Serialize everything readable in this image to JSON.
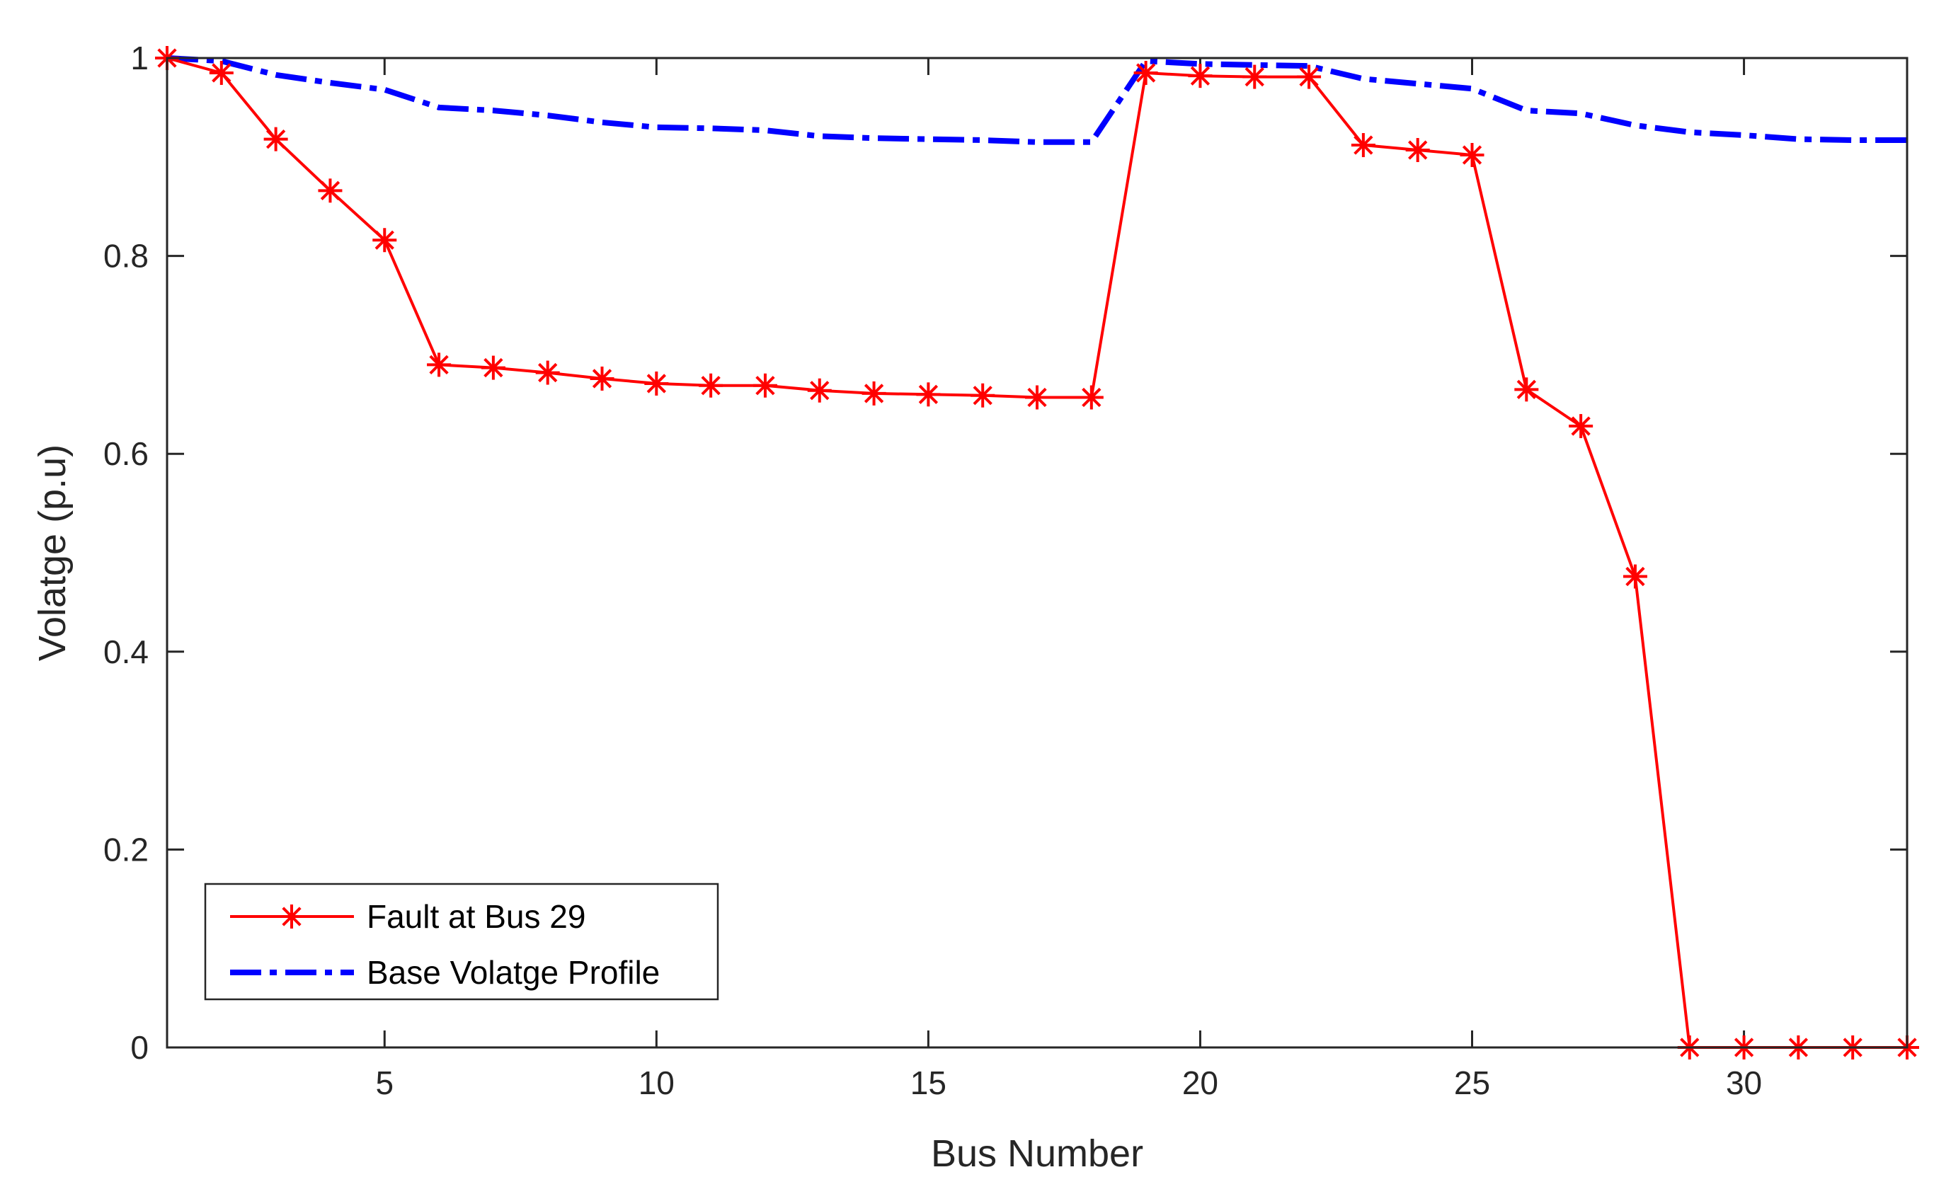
{
  "chart_data": {
    "type": "line",
    "title": "",
    "xlabel": "Bus Number",
    "ylabel": "Volatge (p.u)",
    "xlim": [
      1,
      33
    ],
    "ylim": [
      0,
      1
    ],
    "xticks": [
      5,
      10,
      15,
      20,
      25,
      30
    ],
    "yticks": [
      0,
      0.2,
      0.4,
      0.6,
      0.8,
      1
    ],
    "ytick_labels": [
      "0",
      "0.2",
      "0.4",
      "0.6",
      "0.8",
      "1"
    ],
    "grid": false,
    "box": true,
    "legend_position": "bottom-left",
    "x": [
      1,
      2,
      3,
      4,
      5,
      6,
      7,
      8,
      9,
      10,
      11,
      12,
      13,
      14,
      15,
      16,
      17,
      18,
      19,
      20,
      21,
      22,
      23,
      24,
      25,
      26,
      27,
      28,
      29,
      30,
      31,
      32,
      33
    ],
    "series": [
      {
        "name": "Fault at Bus 29",
        "color": "#ff0000",
        "line_style": "solid",
        "marker": "asterisk",
        "values": [
          1.0,
          0.985,
          0.918,
          0.866,
          0.816,
          0.69,
          0.687,
          0.682,
          0.676,
          0.671,
          0.669,
          0.669,
          0.664,
          0.661,
          0.66,
          0.659,
          0.657,
          0.657,
          0.985,
          0.982,
          0.981,
          0.981,
          0.912,
          0.907,
          0.902,
          0.665,
          0.628,
          0.476,
          0.0,
          0.0,
          0.0,
          0.0,
          0.0
        ]
      },
      {
        "name": "Base Volatge Profile",
        "color": "#0000ff",
        "line_style": "dash-dot",
        "marker": "none",
        "values": [
          1.0,
          0.997,
          0.983,
          0.975,
          0.968,
          0.95,
          0.947,
          0.942,
          0.935,
          0.93,
          0.929,
          0.927,
          0.921,
          0.919,
          0.918,
          0.917,
          0.915,
          0.915,
          0.997,
          0.994,
          0.993,
          0.992,
          0.979,
          0.974,
          0.969,
          0.947,
          0.944,
          0.932,
          0.925,
          0.922,
          0.918,
          0.917,
          0.917
        ]
      }
    ]
  }
}
